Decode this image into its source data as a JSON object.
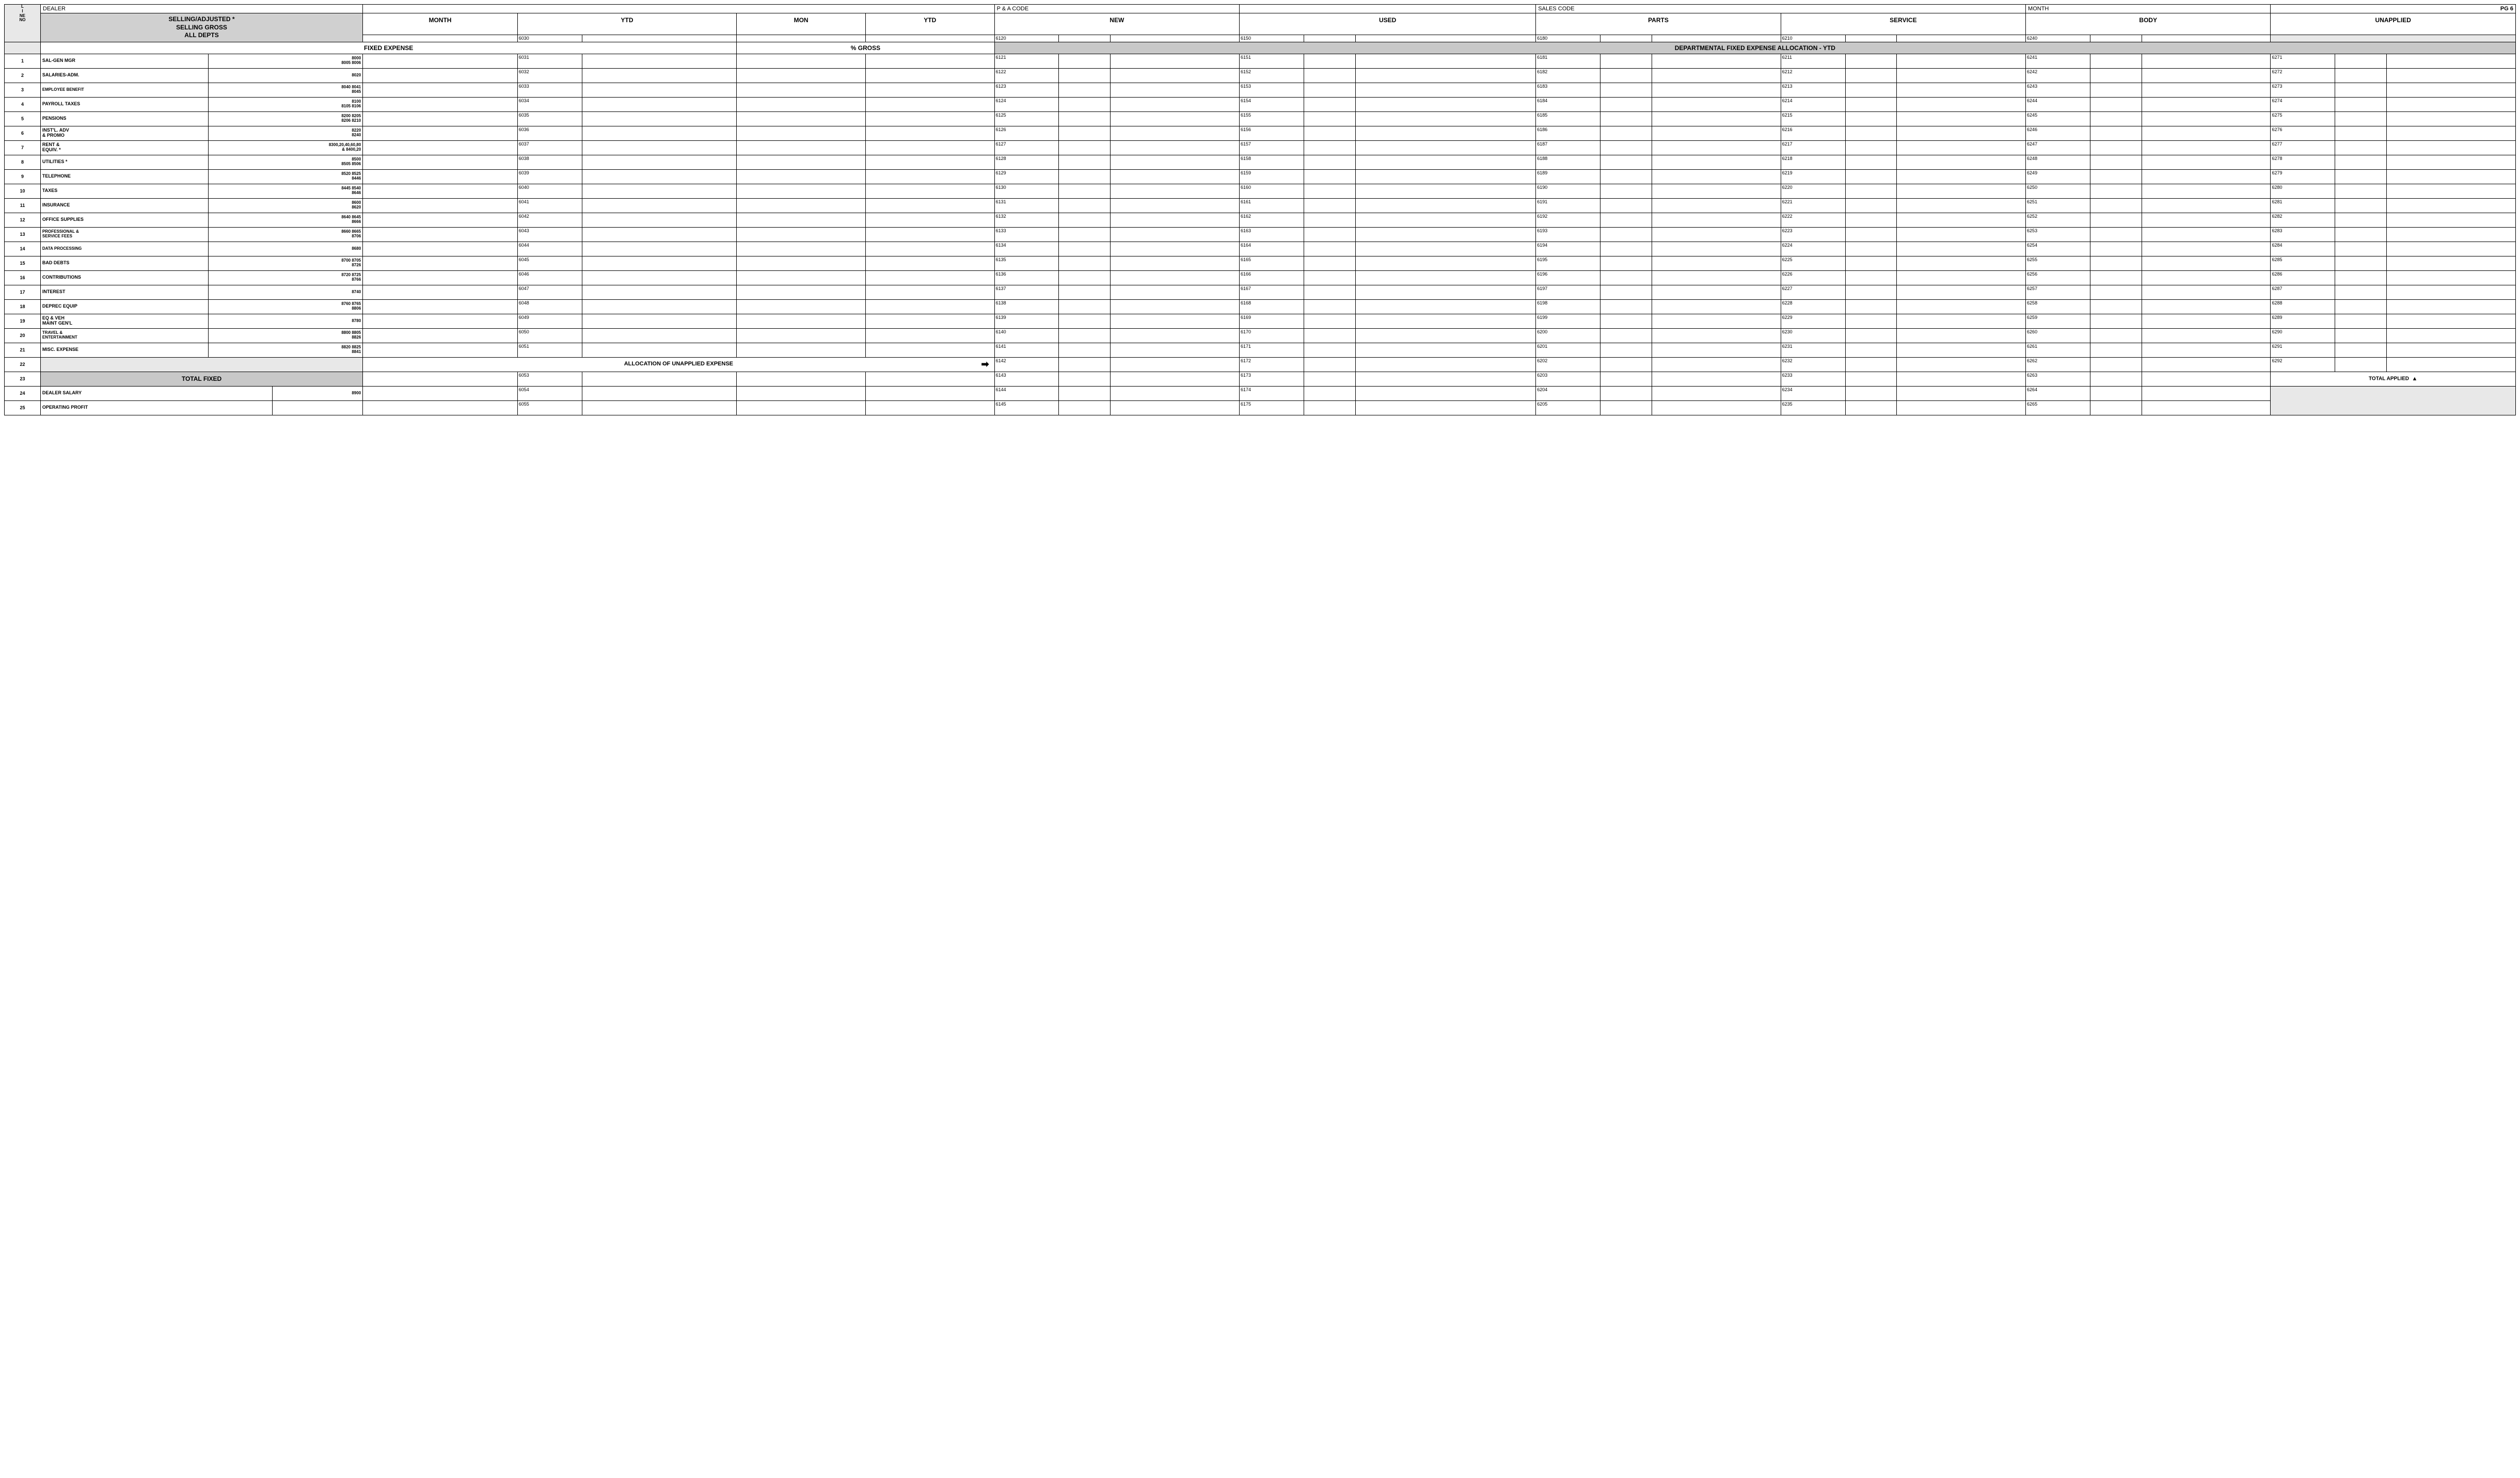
{
  "page": "PG 6",
  "top": {
    "dealer": "DEALER",
    "pa": "P & A CODE",
    "sales": "SALES CODE",
    "month": "MONTH"
  },
  "line_no_hdr": "L\nI\nNE\nNO",
  "selling_hdr": "SELLING/ADJUSTED *\nSELLING GROSS\nALL DEPTS",
  "cols": {
    "month": "MONTH",
    "ytd": "YTD",
    "mon2": "MON",
    "ytd2": "YTD",
    "new": "NEW",
    "used": "USED",
    "parts": "PARTS",
    "service": "SERVICE",
    "body": "BODY",
    "unapplied": "UNAPPLIED"
  },
  "code_row": {
    "ytd": "6030",
    "new": "6120",
    "used": "6150",
    "parts": "6180",
    "service": "6210",
    "body": "6240"
  },
  "sections": {
    "fixed_expense": "FIXED EXPENSE",
    "pct_gross": "% GROSS",
    "dept_alloc": "DEPARTMENTAL FIXED EXPENSE ALLOCATION - YTD"
  },
  "rows": [
    {
      "n": "1",
      "label": "SAL-GEN MGR",
      "codes": "8000\n8005 8006",
      "ytd": "6031",
      "d": [
        "6121",
        "6151",
        "6181",
        "6211",
        "6241",
        "6271"
      ]
    },
    {
      "n": "2",
      "label": "SALARIES-ADM.",
      "codes": "8020",
      "ytd": "6032",
      "d": [
        "6122",
        "6152",
        "6182",
        "6212",
        "6242",
        "6272"
      ]
    },
    {
      "n": "3",
      "label": "EMPLOYEE BENEFIT",
      "codes": "8040 8041\n8045",
      "ytd": "6033",
      "d": [
        "6123",
        "6153",
        "6183",
        "6213",
        "6243",
        "6273"
      ],
      "small": true
    },
    {
      "n": "4",
      "label": "PAYROLL TAXES",
      "codes": "8100\n8105 8106",
      "ytd": "6034",
      "d": [
        "6124",
        "6154",
        "6184",
        "6214",
        "6244",
        "6274"
      ]
    },
    {
      "n": "5",
      "label": "PENSIONS",
      "codes": "8200 8205\n8206 8210",
      "ytd": "6035",
      "d": [
        "6125",
        "6155",
        "6185",
        "6215",
        "6245",
        "6275"
      ]
    },
    {
      "n": "6",
      "label": "INST'L. ADV\n& PROMO",
      "codes": "8220\n8240",
      "ytd": "6036",
      "d": [
        "6126",
        "6156",
        "6186",
        "6216",
        "6246",
        "6276"
      ]
    },
    {
      "n": "7",
      "label": "RENT &\nEQUIV. *",
      "codes": "8300,20,40,60,80\n& 8400,20",
      "ytd": "6037",
      "d": [
        "6127",
        "6157",
        "6187",
        "6217",
        "6247",
        "6277"
      ]
    },
    {
      "n": "8",
      "label": "UTILITIES *",
      "codes": "8500\n8505 8506",
      "ytd": "6038",
      "d": [
        "6128",
        "6158",
        "6188",
        "6218",
        "6248",
        "6278"
      ]
    },
    {
      "n": "9",
      "label": "TELEPHONE",
      "codes": "8520 8525\n8446",
      "ytd": "6039",
      "d": [
        "6129",
        "6159",
        "6189",
        "6219",
        "6249",
        "6279"
      ]
    },
    {
      "n": "10",
      "label": "TAXES",
      "codes": "8445 8540\n8646",
      "ytd": "6040",
      "d": [
        "6130",
        "6160",
        "6190",
        "6220",
        "6250",
        "6280"
      ]
    },
    {
      "n": "11",
      "label": "INSURANCE",
      "codes": "8600\n8620",
      "ytd": "6041",
      "d": [
        "6131",
        "6161",
        "6191",
        "6221",
        "6251",
        "6281"
      ]
    },
    {
      "n": "12",
      "label": "OFFICE SUPPLIES",
      "codes": "8640 8645\n8666",
      "ytd": "6042",
      "d": [
        "6132",
        "6162",
        "6192",
        "6222",
        "6252",
        "6282"
      ]
    },
    {
      "n": "13",
      "label": "PROFESSIONAL &\nSERVICE FEES",
      "codes": "8660 8665\n8706",
      "ytd": "6043",
      "d": [
        "6133",
        "6163",
        "6193",
        "6223",
        "6253",
        "6283"
      ],
      "small": true
    },
    {
      "n": "14",
      "label": "DATA PROCESSING",
      "codes": "8680",
      "ytd": "6044",
      "d": [
        "6134",
        "6164",
        "6194",
        "6224",
        "6254",
        "6284"
      ],
      "small": true
    },
    {
      "n": "15",
      "label": "BAD DEBTS",
      "codes": "8700 8705\n8726",
      "ytd": "6045",
      "d": [
        "6135",
        "6165",
        "6195",
        "6225",
        "6255",
        "6285"
      ]
    },
    {
      "n": "16",
      "label": "CONTRIBUTIONS",
      "codes": "8720 8725\n8766",
      "ytd": "6046",
      "d": [
        "6136",
        "6166",
        "6196",
        "6226",
        "6256",
        "6286"
      ]
    },
    {
      "n": "17",
      "label": "INTEREST",
      "codes": "8740",
      "ytd": "6047",
      "d": [
        "6137",
        "6167",
        "6197",
        "6227",
        "6257",
        "6287"
      ]
    },
    {
      "n": "18",
      "label": "DEPREC EQUIP",
      "codes": "8760 8765\n8806",
      "ytd": "6048",
      "d": [
        "6138",
        "6168",
        "6198",
        "6228",
        "6258",
        "6288"
      ]
    },
    {
      "n": "19",
      "label": "EQ & VEH\nMAINT GEN'L",
      "codes": "8780",
      "ytd": "6049",
      "d": [
        "6139",
        "6169",
        "6199",
        "6229",
        "6259",
        "6289"
      ]
    },
    {
      "n": "20",
      "label": "TRAVEL &\nENTERTAINMENT",
      "codes": "8800 8805\n8826",
      "ytd": "6050",
      "d": [
        "6140",
        "6170",
        "6200",
        "6230",
        "6260",
        "6290"
      ],
      "small": true
    },
    {
      "n": "21",
      "label": "MISC. EXPENSE",
      "codes": "8820 8825\n8841",
      "ytd": "6051",
      "d": [
        "6141",
        "6171",
        "6201",
        "6231",
        "6261",
        "6291"
      ]
    }
  ],
  "alloc": {
    "n": "22",
    "label": "ALLOCATION OF UNAPPLIED EXPENSE",
    "d": [
      "6142",
      "6172",
      "6202",
      "6232",
      "6262",
      "6292"
    ]
  },
  "total_fixed": {
    "n": "23",
    "label": "TOTAL FIXED",
    "ytd": "6053",
    "d": [
      "6143",
      "6173",
      "6203",
      "6233",
      "6263"
    ],
    "applied": "TOTAL APPLIED"
  },
  "dealer_sal": {
    "n": "24",
    "label": "DEALER SALARY",
    "code": "8900",
    "ytd": "6054",
    "d": [
      "6144",
      "6174",
      "6204",
      "6234",
      "6264"
    ]
  },
  "op_profit": {
    "n": "25",
    "label": "OPERATING PROFIT",
    "ytd": "6055",
    "d": [
      "6145",
      "6175",
      "6205",
      "6235",
      "6265"
    ]
  }
}
